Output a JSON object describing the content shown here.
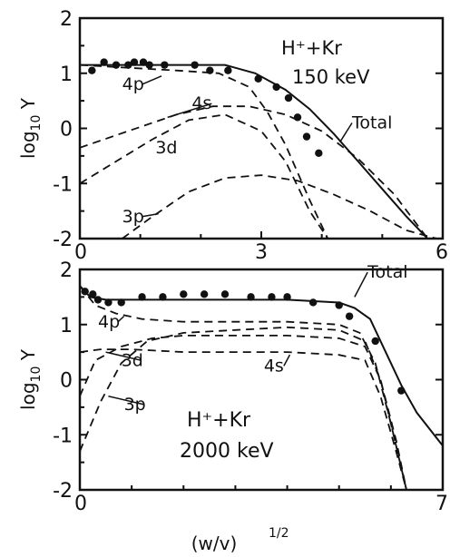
{
  "chart_data": [
    {
      "type": "line",
      "xlim": [
        0,
        6
      ],
      "ylim": [
        -2,
        2
      ],
      "xticks": [
        "0",
        "3",
        "6"
      ],
      "yticks": [
        "2",
        "1",
        "0",
        "-1",
        "-2"
      ],
      "ylabel": "log10 Y",
      "annotation_main": "H⁺+Kr",
      "annotation_energy": "150 keV",
      "series": [
        {
          "name": "Total",
          "style": "solid",
          "x": [
            0,
            0.8,
            1.6,
            2.4,
            2.9,
            3.4,
            3.8,
            4.2,
            4.6,
            5.0,
            5.4,
            5.75
          ],
          "y": [
            1.15,
            1.15,
            1.15,
            1.15,
            1.0,
            0.7,
            0.35,
            -0.1,
            -0.6,
            -1.1,
            -1.6,
            -2.0
          ]
        },
        {
          "name": "4p",
          "style": "dashed",
          "x": [
            0,
            0.8,
            1.6,
            2.3,
            2.8,
            3.1,
            3.4,
            3.8,
            4.1
          ],
          "y": [
            1.15,
            1.1,
            1.05,
            1.0,
            0.75,
            0.3,
            -0.3,
            -1.3,
            -2.0
          ]
        },
        {
          "name": "4s",
          "style": "dashed",
          "x": [
            0,
            0.8,
            1.6,
            2.2,
            2.8,
            3.4,
            4.0,
            4.6,
            5.2,
            5.75
          ],
          "y": [
            -0.35,
            -0.05,
            0.25,
            0.4,
            0.4,
            0.25,
            -0.05,
            -0.55,
            -1.2,
            -2.0
          ]
        },
        {
          "name": "3d",
          "style": "dashed",
          "x": [
            0,
            0.6,
            1.2,
            1.8,
            2.4,
            3.0,
            3.4,
            3.8,
            4.1
          ],
          "y": [
            -1.0,
            -0.6,
            -0.2,
            0.15,
            0.25,
            -0.05,
            -0.6,
            -1.5,
            -2.0
          ]
        },
        {
          "name": "3p",
          "style": "dashed",
          "x": [
            0.7,
            1.2,
            1.8,
            2.4,
            3.0,
            3.6,
            4.2,
            4.8,
            5.4,
            5.9
          ],
          "y": [
            -2.0,
            -1.6,
            -1.15,
            -0.9,
            -0.85,
            -0.95,
            -1.2,
            -1.5,
            -1.85,
            -2.0
          ]
        }
      ],
      "points": {
        "x": [
          0.2,
          0.4,
          0.6,
          0.8,
          0.9,
          1.05,
          1.15,
          1.4,
          1.9,
          2.15,
          2.45,
          2.95,
          3.25,
          3.45,
          3.6,
          3.75,
          3.95
        ],
        "y": [
          1.05,
          1.2,
          1.15,
          1.15,
          1.2,
          1.2,
          1.15,
          1.15,
          1.15,
          1.05,
          1.05,
          0.9,
          0.75,
          0.55,
          0.2,
          -0.15,
          -0.45
        ]
      },
      "labels": [
        {
          "text": "4p",
          "x": 0.7,
          "y": 0.7,
          "tx": 1.35,
          "ty": 0.95
        },
        {
          "text": "4s",
          "x": 1.85,
          "y": 0.35,
          "tx": 1.45,
          "ty": 0.2
        },
        {
          "text": "3d",
          "x": 1.25,
          "y": -0.45,
          "tx": null,
          "ty": null
        },
        {
          "text": "3p",
          "x": 0.7,
          "y": -1.7,
          "tx": 1.3,
          "ty": -1.55
        },
        {
          "text": "Total",
          "x": 4.5,
          "y": 0.0,
          "tx": 4.3,
          "ty": -0.25
        }
      ]
    },
    {
      "type": "line",
      "xlim": [
        0,
        7
      ],
      "ylim": [
        -2,
        2
      ],
      "xticks": [
        "0",
        "7"
      ],
      "yticks": [
        "2",
        "1",
        "0",
        "-1",
        "-2"
      ],
      "ylabel": "log10 Y",
      "xlabel": "(w/v)",
      "xlabel_exp": "1/2",
      "annotation_main": "H⁺+Kr",
      "annotation_energy": "2000 keV",
      "series": [
        {
          "name": "Total",
          "style": "solid",
          "x": [
            0,
            0.2,
            0.5,
            1.0,
            2.0,
            3.0,
            4.0,
            5.0,
            5.3,
            5.6,
            5.9,
            6.2,
            6.5,
            7.0
          ],
          "y": [
            1.7,
            1.5,
            1.45,
            1.45,
            1.45,
            1.45,
            1.45,
            1.4,
            1.3,
            1.1,
            0.5,
            -0.1,
            -0.6,
            -1.2
          ]
        },
        {
          "name": "4p",
          "style": "dashed",
          "x": [
            0,
            0.3,
            0.7,
            1.2,
            2.0,
            3.0,
            4.0,
            5.0,
            5.4,
            5.7,
            6.0,
            6.3
          ],
          "y": [
            1.7,
            1.35,
            1.2,
            1.1,
            1.05,
            1.05,
            1.05,
            1.0,
            0.85,
            0.3,
            -0.8,
            -2.0
          ]
        },
        {
          "name": "4s",
          "style": "dashed",
          "x": [
            0,
            0.4,
            1.0,
            2.0,
            3.0,
            4.0,
            5.0,
            5.5,
            5.8,
            6.1,
            6.3
          ],
          "y": [
            0.5,
            0.55,
            0.55,
            0.5,
            0.5,
            0.5,
            0.45,
            0.35,
            -0.3,
            -1.3,
            -2.0
          ]
        },
        {
          "name": "3d",
          "style": "dashed",
          "x": [
            0,
            0.3,
            0.8,
            1.4,
            2.0,
            3.0,
            4.0,
            5.0,
            5.5,
            5.8,
            6.1,
            6.3
          ],
          "y": [
            -0.3,
            0.35,
            0.6,
            0.75,
            0.8,
            0.8,
            0.8,
            0.75,
            0.6,
            0.0,
            -1.1,
            -2.0
          ]
        },
        {
          "name": "3p",
          "style": "dashed",
          "x": [
            0,
            0.4,
            0.8,
            1.3,
            2.0,
            3.0,
            4.0,
            5.0,
            5.5,
            5.8,
            6.1,
            6.3
          ],
          "y": [
            -1.3,
            -0.4,
            0.3,
            0.7,
            0.85,
            0.9,
            0.95,
            0.9,
            0.7,
            0.0,
            -1.2,
            -2.0
          ]
        }
      ],
      "points": {
        "x": [
          0.1,
          0.25,
          0.35,
          0.55,
          0.8,
          1.2,
          1.6,
          2.0,
          2.4,
          2.8,
          3.3,
          3.7,
          4.0,
          4.5,
          5.0,
          5.2,
          5.7,
          6.2
        ],
        "y": [
          1.6,
          1.55,
          1.45,
          1.4,
          1.4,
          1.5,
          1.5,
          1.55,
          1.55,
          1.55,
          1.5,
          1.5,
          1.5,
          1.4,
          1.35,
          1.15,
          0.7,
          -0.2
        ]
      },
      "labels": [
        {
          "text": "4p",
          "x": 0.35,
          "y": 0.95,
          "tx": 0.85,
          "ty": 1.15
        },
        {
          "text": "4s",
          "x": 3.55,
          "y": 0.15,
          "tx": 4.05,
          "ty": 0.45
        },
        {
          "text": "3d",
          "x": 0.8,
          "y": 0.25,
          "tx": 0.5,
          "ty": 0.5
        },
        {
          "text": "3p",
          "x": 0.85,
          "y": -0.55,
          "tx": 0.55,
          "ty": -0.3
        },
        {
          "text": "Total",
          "x": 5.55,
          "y": 1.85,
          "tx": 5.3,
          "ty": 1.5
        }
      ]
    }
  ]
}
